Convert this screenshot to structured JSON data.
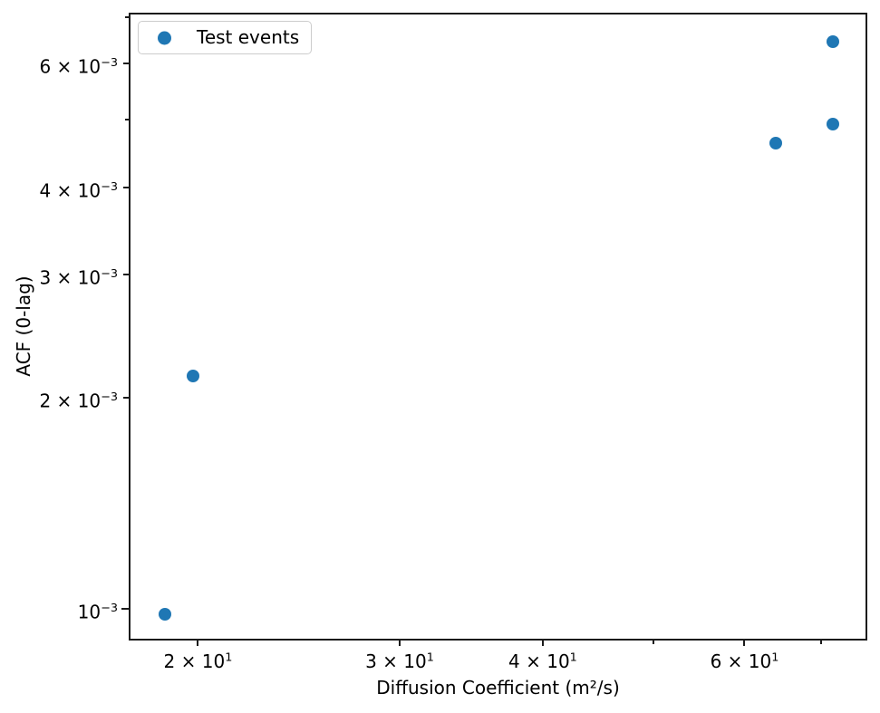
{
  "colors": {
    "marker": "#1f77b4",
    "axis": "#1b1b1b",
    "legend_border": "#cccccc",
    "background": "#ffffff"
  },
  "chart_data": {
    "type": "scatter",
    "title": "",
    "xlabel": "Diffusion Coefficient (m²/s)",
    "ylabel": "ACF (0-lag)",
    "xscale": "log",
    "yscale": "log",
    "xlim": [
      17.4,
      76.8
    ],
    "ylim": [
      0.0009,
      0.0071
    ],
    "grid": false,
    "legend_position": "upper left",
    "series": [
      {
        "name": "Test events",
        "color": "#1f77b4",
        "marker": "circle",
        "x": [
          18.7,
          19.8,
          63.9,
          71.7,
          71.7
        ],
        "y": [
          0.00098,
          0.00215,
          0.00462,
          0.00492,
          0.00645
        ]
      }
    ],
    "x_ticks": [
      {
        "value": 20,
        "base": "2 × 10",
        "exp": "1"
      },
      {
        "value": 30,
        "base": "3 × 10",
        "exp": "1"
      },
      {
        "value": 40,
        "base": "4 × 10",
        "exp": "1"
      },
      {
        "value": 50
      },
      {
        "value": 60,
        "base": "6 × 10",
        "exp": "1"
      },
      {
        "value": 70
      }
    ],
    "y_ticks": [
      {
        "value": 0.001,
        "base": "10",
        "exp": "−3",
        "major": true
      },
      {
        "value": 0.002,
        "base": "2 × 10",
        "exp": "−3"
      },
      {
        "value": 0.003,
        "base": "3 × 10",
        "exp": "−3"
      },
      {
        "value": 0.004,
        "base": "4 × 10",
        "exp": "−3"
      },
      {
        "value": 0.005
      },
      {
        "value": 0.006,
        "base": "6 × 10",
        "exp": "−3"
      },
      {
        "value": 0.007
      }
    ]
  }
}
